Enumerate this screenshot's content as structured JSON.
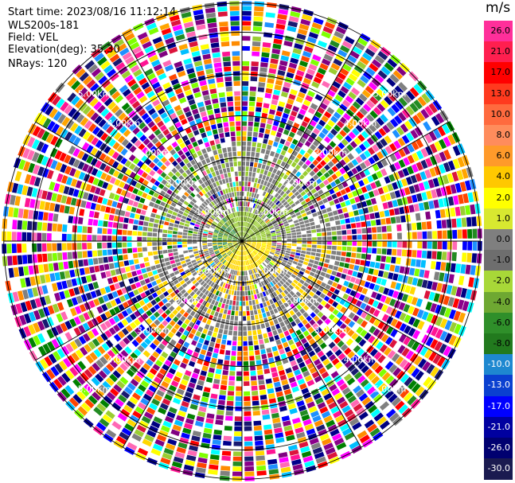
{
  "info": {
    "start_time": "Start time: 2023/08/16 11:12:14",
    "instrument": "WLS200s-181",
    "field": "Field: VEL",
    "elevation": "Elevation(deg): 35.30",
    "nrays": "NRays: 120"
  },
  "colorbar": {
    "unit": "m/s",
    "ticks": [
      "26.0",
      "21.0",
      "17.0",
      "13.0",
      "10.0",
      "8.0",
      "6.0",
      "4.0",
      "2.0",
      "1.0",
      "0.0",
      "-1.0",
      "-2.0",
      "-4.0",
      "-6.0",
      "-8.0",
      "-10.0",
      "-13.0",
      "-17.0",
      "-21.0",
      "-26.0",
      "-30.0"
    ],
    "colors": [
      "#ff2f9a",
      "#ff1f4f",
      "#ff0000",
      "#ff3a1e",
      "#ff6a3e",
      "#ff8c5c",
      "#ff9a2a",
      "#ffc800",
      "#ffff00",
      "#d8e830",
      "#7f7f7f",
      "#6e6e6e",
      "#a8d838",
      "#6ea832",
      "#2f8f2a",
      "#227a1e",
      "#1e88d0",
      "#0a40d0",
      "#0000ff",
      "#0000a0",
      "#000070",
      "#1a1a50"
    ]
  },
  "chart_data": {
    "type": "ppi",
    "title": "",
    "field": "VEL",
    "elevation_deg": 35.3,
    "nrays": 120,
    "units": "m/s",
    "range_rings_km": [
      1,
      2,
      3,
      4,
      5
    ],
    "ring_labels": [
      "1.00km",
      "2.00km",
      "3.00km",
      "4.00km",
      "5.00km"
    ],
    "max_range_km": 5.7,
    "vmin": -30.0,
    "vmax": 26.0
  }
}
